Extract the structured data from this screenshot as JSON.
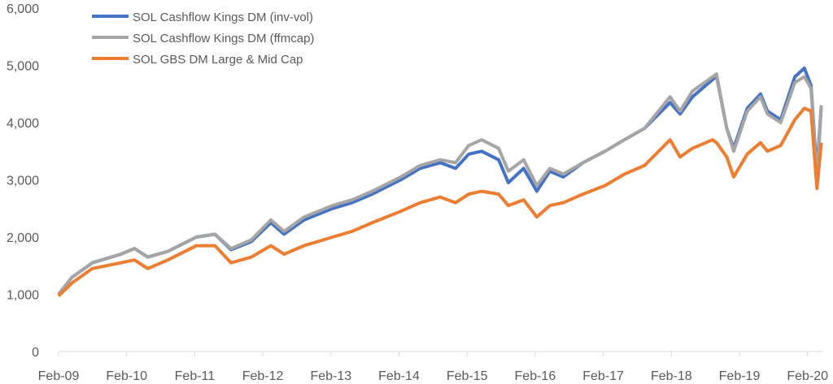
{
  "chart_data": {
    "type": "line",
    "title": "",
    "xlabel": "",
    "ylabel": "",
    "ylim": [
      0,
      6000
    ],
    "yticks": [
      "0",
      "1,000",
      "2,000",
      "3,000",
      "4,000",
      "5,000",
      "6,000"
    ],
    "ytick_values": [
      0,
      1000,
      2000,
      3000,
      4000,
      5000,
      6000
    ],
    "xticks": [
      "Feb-09",
      "Feb-10",
      "Feb-11",
      "Feb-12",
      "Feb-13",
      "Feb-14",
      "Feb-15",
      "Feb-16",
      "Feb-17",
      "Feb-18",
      "Feb-19",
      "Feb-20"
    ],
    "xtick_dates": [
      "2009-02-01",
      "2010-02-01",
      "2011-02-01",
      "2012-02-01",
      "2013-02-01",
      "2014-02-01",
      "2015-02-01",
      "2016-02-01",
      "2017-02-01",
      "2018-02-01",
      "2019-02-01",
      "2020-02-01"
    ],
    "xlim": [
      "2009-02-01",
      "2020-04-20"
    ],
    "grid": false,
    "legend": "top-left",
    "x": [
      "2009-02-01",
      "2009-04-15",
      "2009-08-01",
      "2010-01-01",
      "2010-03-15",
      "2010-05-25",
      "2010-09-10",
      "2011-02-10",
      "2011-05-20",
      "2011-08-15",
      "2011-12-01",
      "2012-03-15",
      "2012-05-25",
      "2012-09-10",
      "2013-02-10",
      "2013-05-25",
      "2013-09-10",
      "2014-02-10",
      "2014-05-25",
      "2014-09-10",
      "2014-12-01",
      "2015-02-10",
      "2015-04-20",
      "2015-07-20",
      "2015-09-10",
      "2015-12-01",
      "2016-02-10",
      "2016-04-20",
      "2016-07-01",
      "2016-10-15",
      "2017-02-10",
      "2017-05-25",
      "2017-09-10",
      "2018-01-25",
      "2018-03-20",
      "2018-05-25",
      "2018-09-10",
      "2018-10-01",
      "2018-11-25",
      "2019-01-01",
      "2019-03-15",
      "2019-05-25",
      "2019-07-01",
      "2019-09-10",
      "2019-11-25",
      "2020-01-15",
      "2020-02-20",
      "2020-03-23",
      "2020-04-05",
      "2020-04-15"
    ],
    "series": [
      {
        "name": "SOL Cashflow Kings DM (inv-vol)",
        "color": "#4472C4",
        "values": [
          1000,
          1300,
          1550,
          1700,
          1800,
          1650,
          1750,
          2000,
          2050,
          1780,
          1920,
          2250,
          2050,
          2300,
          2500,
          2600,
          2750,
          3000,
          3200,
          3300,
          3200,
          3450,
          3500,
          3350,
          2950,
          3200,
          2800,
          3150,
          3050,
          3300,
          3500,
          3700,
          3900,
          4350,
          4150,
          4450,
          4750,
          4820,
          3900,
          3550,
          4250,
          4500,
          4200,
          4050,
          4800,
          4950,
          4650,
          3100,
          3800,
          4300
        ]
      },
      {
        "name": "SOL Cashflow Kings DM (ffmcap)",
        "color": "#A5A5A5",
        "values": [
          1000,
          1300,
          1550,
          1700,
          1800,
          1650,
          1750,
          2000,
          2050,
          1800,
          1950,
          2300,
          2100,
          2350,
          2550,
          2650,
          2800,
          3050,
          3250,
          3350,
          3300,
          3600,
          3700,
          3550,
          3150,
          3350,
          2900,
          3200,
          3100,
          3300,
          3500,
          3700,
          3900,
          4450,
          4200,
          4550,
          4800,
          4850,
          3900,
          3500,
          4200,
          4450,
          4150,
          4000,
          4700,
          4800,
          4600,
          3000,
          3700,
          4300
        ]
      },
      {
        "name": "SOL GBS DM Large & Mid Cap",
        "color": "#ED7D31",
        "values": [
          970,
          1200,
          1450,
          1550,
          1600,
          1450,
          1600,
          1850,
          1850,
          1550,
          1650,
          1850,
          1700,
          1850,
          2000,
          2100,
          2250,
          2450,
          2600,
          2700,
          2600,
          2750,
          2800,
          2750,
          2550,
          2650,
          2350,
          2550,
          2600,
          2750,
          2900,
          3100,
          3250,
          3700,
          3400,
          3550,
          3700,
          3650,
          3400,
          3050,
          3450,
          3650,
          3500,
          3600,
          4050,
          4250,
          4200,
          2850,
          3300,
          3650
        ]
      }
    ]
  }
}
